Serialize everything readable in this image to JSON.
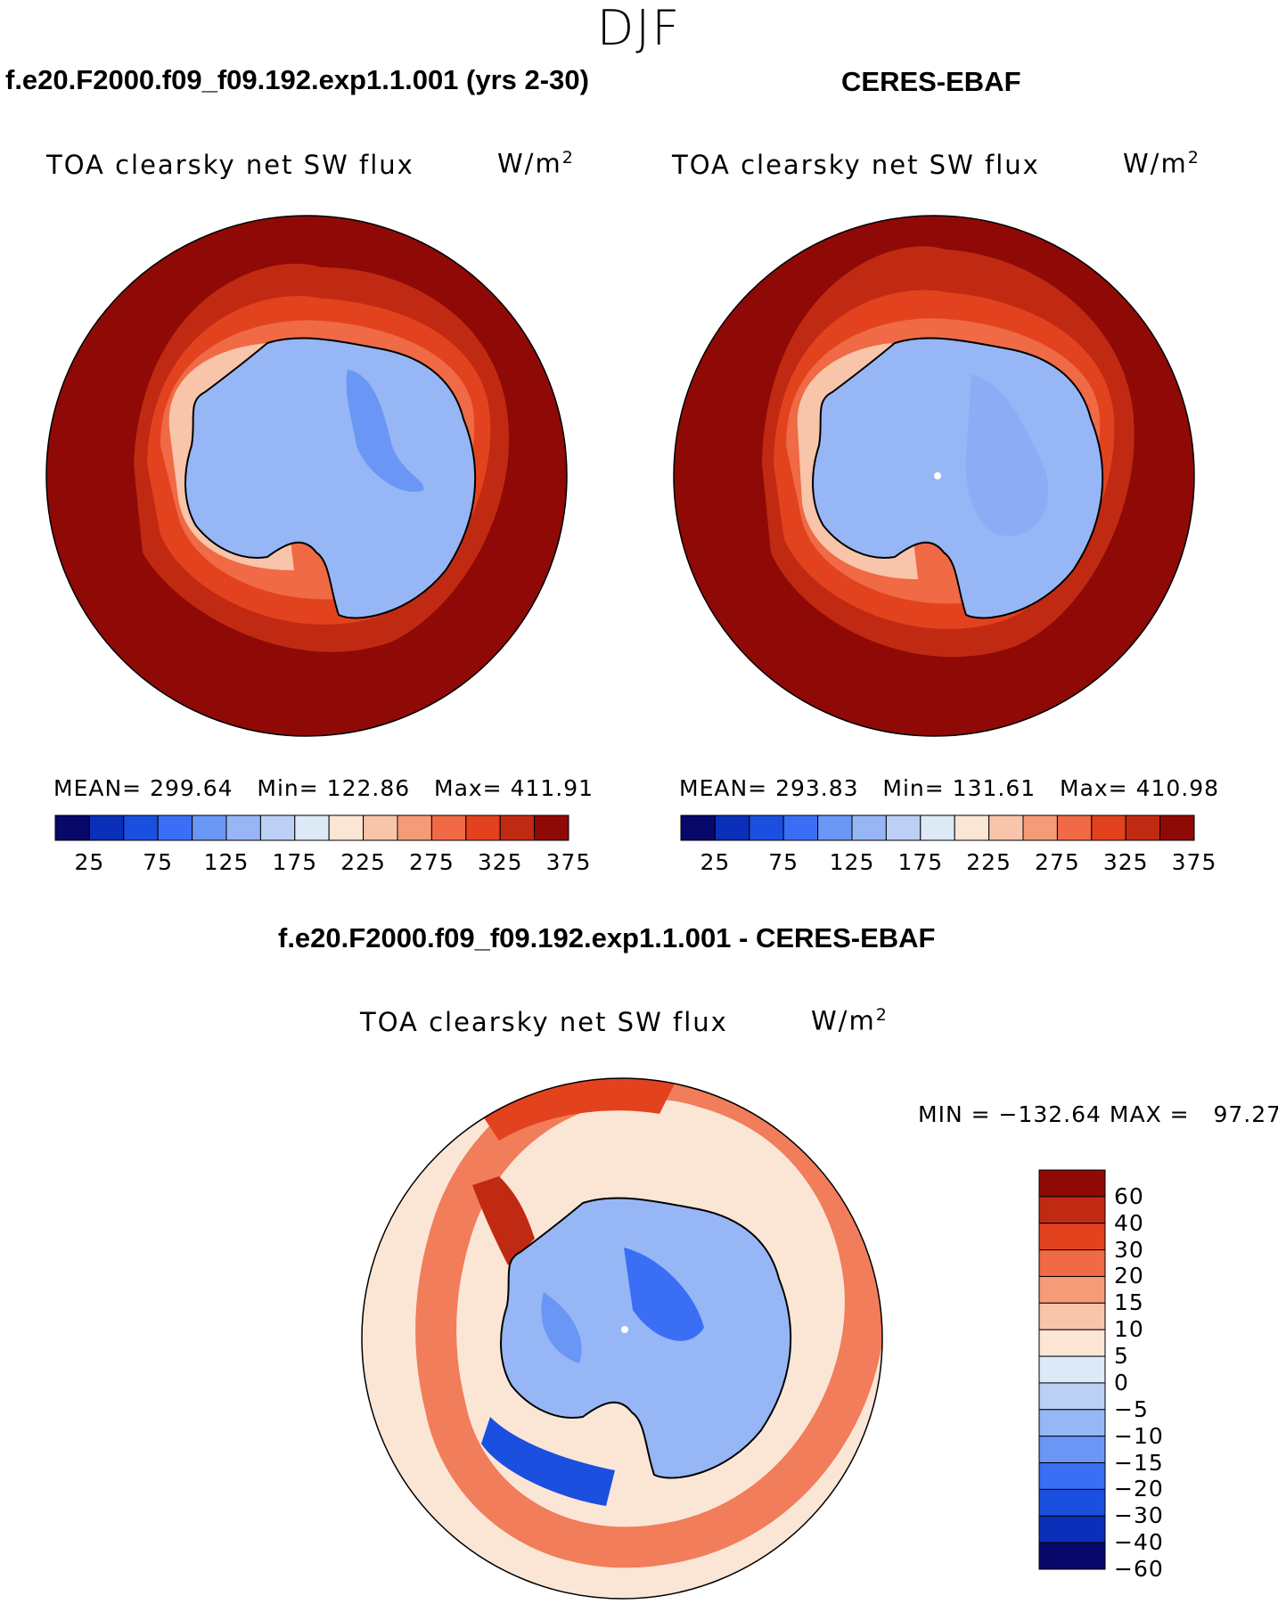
{
  "season": "DJF",
  "panels": [
    {
      "case_title": "f.e20.F2000.f09_f09.192.exp1.1.001 (yrs 2-30)",
      "variable": "TOA clearsky net SW flux",
      "units_base": "W/m",
      "units_exp": "2",
      "stats": {
        "mean_label": "MEAN=",
        "mean": "299.64",
        "min_label": "Min=",
        "min": "122.86",
        "max_label": "Max=",
        "max": "411.91"
      }
    },
    {
      "case_title": "CERES-EBAF",
      "variable": "TOA clearsky net SW flux",
      "units_base": "W/m",
      "units_exp": "2",
      "stats": {
        "mean_label": "MEAN=",
        "mean": "293.83",
        "min_label": "Min=",
        "min": "131.61",
        "max_label": "Max=",
        "max": "410.98"
      }
    }
  ],
  "diff_panel": {
    "case_title": "f.e20.F2000.f09_f09.192.exp1.1.001 - CERES-EBAF",
    "variable": "TOA clearsky net SW flux",
    "units_base": "W/m",
    "units_exp": "2",
    "stats": {
      "min_label": "MIN =",
      "min": "−132.64",
      "max_label": "MAX =",
      "max": "97.27"
    }
  },
  "colorbar_abs": {
    "tick_labels": [
      "25",
      "75",
      "125",
      "175",
      "225",
      "275",
      "325",
      "375"
    ],
    "colors": [
      "#08086b",
      "#0a2fb8",
      "#1a4fe0",
      "#3a6ff5",
      "#6a96f5",
      "#97b6f5",
      "#bcd0f5",
      "#dde9f7",
      "#fbe6d6",
      "#f8c4aa",
      "#f59b78",
      "#ef6a45",
      "#e3421f",
      "#c12a12",
      "#8f0a06"
    ]
  },
  "colorbar_diff": {
    "tick_labels": [
      "60",
      "40",
      "30",
      "20",
      "15",
      "10",
      "5",
      "0",
      "−5",
      "−10",
      "−15",
      "−20",
      "−30",
      "−40",
      "−60"
    ],
    "colors": [
      "#8f0a06",
      "#c12a12",
      "#e3421f",
      "#ef6a45",
      "#f59b78",
      "#f8c4aa",
      "#fbe6d6",
      "#dde9f7",
      "#bcd0f5",
      "#97b6f5",
      "#6a96f5",
      "#3a6ff5",
      "#1a4fe0",
      "#0a2fb8",
      "#08086b"
    ]
  },
  "map_colors": {
    "ocean_high": "#8f0a06",
    "ocean_mid": "#c12a12",
    "ocean_band": "#e3421f",
    "ocean_band2": "#ef6a45",
    "ocean_low": "#f8c4aa",
    "ice_sheet": "#97b6f5",
    "ice_interior": "#6a96f5",
    "diff_background": "#fbe6d6",
    "diff_pos": "#ef6a45",
    "diff_neg": "#3a6ff5"
  }
}
